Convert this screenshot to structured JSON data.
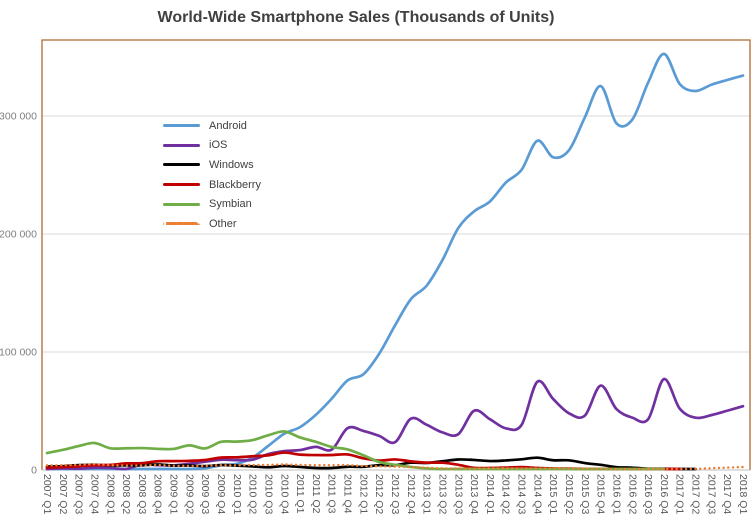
{
  "title": "World-Wide Smartphone Sales (Thousands of Units)",
  "colors": {
    "background": "#FFFFFF",
    "title_text": "#404040",
    "gridline": "#D9D9D9",
    "plot_frame": "#AE6A2F",
    "axis_line": "#BFBFBF",
    "y_tick_text": "#7F7F7F",
    "x_tick_text": "#595959",
    "legend_text": "#404040"
  },
  "chart_data": {
    "type": "line",
    "title": "World-Wide Smartphone Sales (Thousands of Units)",
    "xlabel": "",
    "ylabel": "",
    "ylim": [
      0,
      364400
    ],
    "grid": "horizontal-only",
    "legend_position": "inside-top-left",
    "x_label_rotation": "vertical",
    "line_style": "smoothed",
    "y_ticks": [
      0,
      100000,
      200000,
      300000
    ],
    "y_tick_labels": [
      "0",
      "100 000",
      "200 000",
      "300 000"
    ],
    "x_labels": [
      "2007 Q1",
      "2007 Q2",
      "2007 Q3",
      "2007 Q4",
      "2008 Q1",
      "2008 Q2",
      "2008 Q3",
      "2008 Q4",
      "2009 Q1",
      "2009 Q2",
      "2009 Q3",
      "2009 Q4",
      "2010 Q1",
      "2010 Q2",
      "2010 Q3",
      "2010 Q4",
      "2011 Q1",
      "2011 Q2",
      "2011 Q3",
      "2011 Q4",
      "2012 Q1",
      "2012 Q2",
      "2012 Q3",
      "2012 Q4",
      "2013 Q1",
      "2013 Q2",
      "2013 Q3",
      "2013 Q4",
      "2014 Q1",
      "2014 Q2",
      "2014 Q3",
      "2014 Q4",
      "2015 Q1",
      "2015 Q2",
      "2015 Q3",
      "2015 Q4",
      "2016 Q1",
      "2016 Q2",
      "2016 Q3",
      "2016 Q4",
      "2017 Q1",
      "2017 Q2",
      "2017 Q3",
      "2017 Q4",
      "2018 Q1"
    ],
    "series": [
      {
        "name": "Android",
        "color": "#5B9BD5",
        "style": "solid",
        "values": [
          0,
          0,
          0,
          0,
          0,
          0,
          0,
          640,
          575,
          756,
          1425,
          4043,
          5227,
          10653,
          20544,
          30801,
          36350,
          46776,
          60490,
          75906,
          81067,
          98529,
          122480,
          144720,
          156186,
          177898,
          205023,
          219158,
          227549,
          243484,
          254354,
          279058,
          265012,
          271010,
          298797,
          325394,
          293771,
          296912,
          328224,
          352670,
          327164,
          321186,
          326500,
          330500,
          334300
        ]
      },
      {
        "name": "iOS",
        "color": "#7030A0",
        "style": "solid",
        "values": [
          270,
          1389,
          1104,
          1928,
          1726,
          893,
          4720,
          4079,
          3848,
          5325,
          7040,
          8676,
          8360,
          8743,
          13484,
          16011,
          16883,
          19629,
          17295,
          35456,
          33121,
          28935,
          23550,
          43457,
          38332,
          31900,
          30330,
          50224,
          43062,
          35345,
          38187,
          74832,
          60177,
          48086,
          46062,
          71526,
          51630,
          44395,
          43001,
          77039,
          51993,
          44315,
          46500,
          50200,
          54059
        ]
      },
      {
        "name": "Windows",
        "color": "#000000",
        "style": "solid",
        "values": [
          2931,
          3212,
          4180,
          4374,
          3858,
          3874,
          4053,
          4714,
          3739,
          3830,
          3260,
          4203,
          3706,
          3059,
          2264,
          3419,
          2582,
          1724,
          1702,
          2759,
          2713,
          4087,
          4058,
          6186,
          5989,
          7407,
          8912,
          8534,
          7580,
          8095,
          9033,
          10425,
          8271,
          8198,
          5874,
          4395,
          2400,
          1971,
          1092,
          1092,
          821,
          482,
          null,
          null,
          null
        ]
      },
      {
        "name": "Blackberry",
        "color": "#C00000",
        "style": "solid",
        "values": [
          1919,
          2471,
          3192,
          4025,
          4312,
          5594,
          5800,
          7443,
          7534,
          7782,
          8523,
          10508,
          10753,
          11629,
          12508,
          14762,
          13004,
          12652,
          12701,
          13185,
          9939,
          7991,
          8947,
          7333,
          6218,
          6180,
          4401,
          1807,
          1714,
          2044,
          2420,
          1734,
          1325,
          1153,
          977,
          907,
          660,
          400,
          377,
          208,
          208,
          null,
          null,
          null,
          null
        ]
      },
      {
        "name": "Symbian",
        "color": "#70AD47",
        "style": "solid",
        "values": [
          14376,
          17110,
          20315,
          22903,
          18400,
          18405,
          18583,
          17949,
          17825,
          20881,
          18315,
          23857,
          24068,
          25387,
          29480,
          32642,
          27599,
          23853,
          19500,
          17458,
          12467,
          6831,
          4405,
          2569,
          1349,
          631,
          458,
          262,
          100,
          60,
          50,
          50,
          50,
          50,
          50,
          50,
          50,
          50,
          50,
          50,
          null,
          null,
          null,
          null,
          null
        ]
      },
      {
        "name": "Other",
        "color": "#ED7D31",
        "style": "dotted",
        "values": [
          3919,
          4087,
          4323,
          4821,
          4113,
          3778,
          3763,
          4243,
          3534,
          3471,
          3420,
          4087,
          3897,
          4209,
          4291,
          4681,
          4255,
          4091,
          4077,
          4112,
          3404,
          3129,
          2856,
          2446,
          1971,
          1410,
          1286,
          1233,
          1379,
          1471,
          1310,
          1302,
          1268,
          1229,
          1134,
          1055,
          828,
          530,
          430,
          530,
          821,
          999,
          1500,
          2000,
          2500
        ]
      }
    ]
  }
}
